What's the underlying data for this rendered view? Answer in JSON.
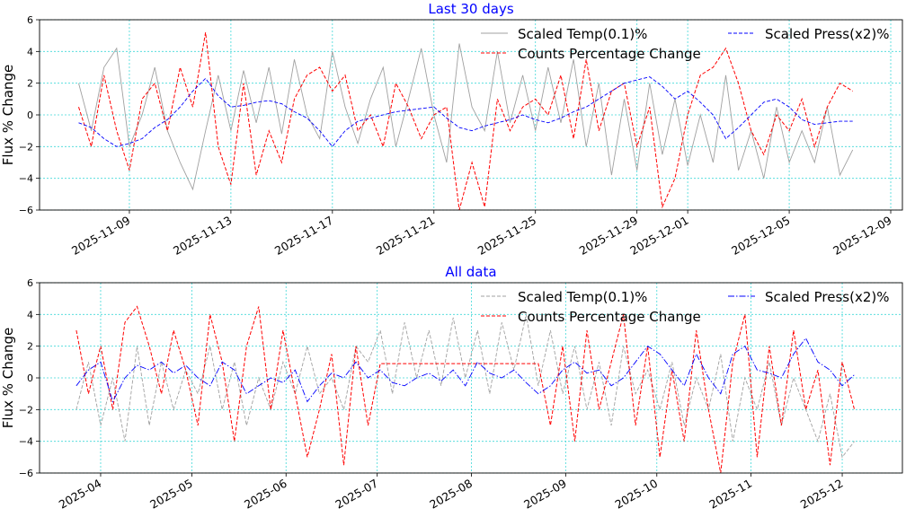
{
  "chart_data": [
    {
      "type": "line",
      "title": "Last 30 days",
      "ylabel": "Flux % Change",
      "xlabel": "",
      "x_unit": "days since 2025-11-01",
      "xlim": [
        4.46,
        38.46
      ],
      "ylim": [
        -6,
        6
      ],
      "yticks": [
        -6,
        -4,
        -2,
        0,
        2,
        4,
        6
      ],
      "xticks": [
        {
          "value": 8,
          "label": "2025-11-09"
        },
        {
          "value": 12,
          "label": "2025-11-13"
        },
        {
          "value": 16,
          "label": "2025-11-17"
        },
        {
          "value": 20,
          "label": "2025-11-21"
        },
        {
          "value": 24,
          "label": "2025-11-25"
        },
        {
          "value": 28,
          "label": "2025-11-29"
        },
        {
          "value": 30,
          "label": "2025-12-01"
        },
        {
          "value": 34,
          "label": "2025-12-05"
        },
        {
          "value": 38,
          "label": "2025-12-09"
        }
      ],
      "grid": true,
      "legend_position": "top-right",
      "x_start": 6,
      "x_step": 0.5,
      "series": [
        {
          "name": "Scaled Temp(0.1)%",
          "color": "#a0a0a0",
          "style": "solid",
          "values": [
            2,
            -1,
            3,
            4.2,
            -2,
            0,
            3,
            -1,
            -3,
            -4.7,
            -1,
            2.5,
            -1,
            2.8,
            -0.5,
            3,
            -1.2,
            3.5,
            0,
            -1.5,
            4,
            0.5,
            -1.8,
            1,
            3,
            -2,
            1,
            4.2,
            0,
            -3,
            4.5,
            0.5,
            -1,
            4,
            -0.5,
            2.5,
            -1,
            3,
            -0.5,
            3.5,
            -2,
            2,
            -3.8,
            1,
            -3.5,
            2,
            -2.5,
            1,
            -3.2,
            0,
            -3,
            2.5,
            -3.5,
            -1,
            -4,
            0.5,
            -3,
            -1,
            -3,
            0.5,
            -3.8,
            -2.2
          ]
        },
        {
          "name": "Counts Percentage Change",
          "color": "#ff0000",
          "style": "dashed",
          "values": [
            0.5,
            -2,
            2.5,
            -1,
            -3.5,
            1,
            2,
            -1,
            3,
            0.5,
            5.2,
            -2,
            -4.4,
            2,
            -3.8,
            -1,
            -3,
            1,
            2.5,
            3,
            1.5,
            2.5,
            -1,
            0,
            -2,
            2,
            0.5,
            -1.5,
            0,
            0.5,
            -6,
            -3,
            -5.8,
            1,
            -1,
            0.5,
            1,
            0,
            2.5,
            -1.5,
            3.5,
            -1,
            1.5,
            2,
            -2,
            0.5,
            -5.8,
            -4,
            0,
            2.5,
            3,
            4.2,
            2,
            -1,
            -2.5,
            0,
            -1,
            1,
            -2,
            0.5,
            2,
            1.5
          ]
        },
        {
          "name": "Scaled Press(x2)%",
          "color": "#0000ff",
          "style": "dashed",
          "values": [
            -0.5,
            -0.8,
            -1.5,
            -2,
            -1.8,
            -1.5,
            -0.8,
            -0.3,
            0.5,
            1.5,
            2.3,
            1.2,
            0.5,
            0.6,
            0.8,
            0.9,
            0.7,
            0.2,
            -0.2,
            -1,
            -2,
            -1,
            -0.4,
            -0.2,
            0,
            0.2,
            0.3,
            0.4,
            0.5,
            -0.2,
            -0.8,
            -1,
            -0.7,
            -0.5,
            -0.3,
            0,
            -0.3,
            -0.5,
            -0.2,
            0.2,
            0.5,
            1,
            1.5,
            2,
            2.2,
            2.4,
            1.8,
            1,
            1.5,
            0.8,
            0,
            -1.5,
            -0.8,
            0,
            0.8,
            1,
            0.5,
            -0.3,
            -0.6,
            -0.5,
            -0.4,
            -0.4
          ]
        }
      ]
    },
    {
      "type": "line",
      "title": "All data",
      "ylabel": "Flux % Change",
      "xlabel": "",
      "x_unit": "days since 2025-04-01",
      "xlim": [
        -20.1,
        263.8
      ],
      "ylim": [
        -6,
        6
      ],
      "yticks": [
        -6,
        -4,
        -2,
        0,
        2,
        4,
        6
      ],
      "xticks": [
        {
          "value": 0,
          "label": "2025-04"
        },
        {
          "value": 30,
          "label": "2025-05"
        },
        {
          "value": 61,
          "label": "2025-06"
        },
        {
          "value": 91,
          "label": "2025-07"
        },
        {
          "value": 122,
          "label": "2025-08"
        },
        {
          "value": 153,
          "label": "2025-09"
        },
        {
          "value": 183,
          "label": "2025-10"
        },
        {
          "value": 214,
          "label": "2025-11"
        },
        {
          "value": 244,
          "label": "2025-12"
        }
      ],
      "grid": true,
      "legend_position": "top-right",
      "x_start": -8,
      "x_step": 4,
      "series": [
        {
          "name": "Scaled Temp(0.1)%",
          "color": "#a0a0a0",
          "style": "dashed",
          "values": [
            -2,
            1,
            -3,
            0,
            -4,
            2,
            -3,
            1,
            -2,
            0.5,
            -1,
            2,
            -2,
            1,
            -3,
            0,
            -2,
            1,
            -1,
            2,
            -1,
            0,
            -2,
            2,
            1,
            3,
            -1,
            3.5,
            0,
            3,
            -0.5,
            3.8,
            0,
            3,
            -1,
            3.5,
            0.5,
            4,
            -0.5,
            3,
            -1,
            2,
            -2,
            1,
            -3,
            2,
            -1,
            0.5,
            -2,
            1,
            -3,
            0,
            -2,
            1.5,
            -4,
            0,
            -2,
            1,
            -3,
            0,
            -2,
            -4,
            -1,
            -5,
            -4
          ]
        },
        {
          "name": "Counts Percentage Change",
          "color": "#ff0000",
          "style": "dashed",
          "values": [
            3,
            -1,
            2,
            -2,
            3.5,
            4.5,
            2,
            -1,
            3,
            0.5,
            -3,
            4,
            1,
            -4,
            2,
            4.5,
            -2,
            3,
            -1,
            -5,
            -2,
            1.5,
            -5.5,
            2,
            -3,
            0.9,
            0.9,
            0.9,
            0.9,
            0.9,
            0.9,
            0.9,
            0.9,
            0.9,
            0.9,
            0.9,
            0.9,
            0.9,
            0.9,
            -3,
            2,
            -4,
            3,
            -2,
            1,
            4,
            -3,
            2,
            -5,
            0.5,
            -4,
            3,
            -2,
            -6,
            1,
            4,
            -5,
            2,
            -3,
            3,
            -2,
            0.5,
            -5.5,
            1,
            -2
          ]
        },
        {
          "name": "Scaled Press(x2)%",
          "color": "#0000ff",
          "style": "dashdot",
          "values": [
            -0.5,
            0.5,
            1,
            -1.5,
            0,
            0.8,
            0.5,
            1,
            0.3,
            0.8,
            0,
            -0.5,
            1,
            0.5,
            -1,
            -0.5,
            0,
            -0.3,
            0.5,
            -1.5,
            -0.5,
            0.3,
            0,
            1,
            0,
            0.5,
            -0.3,
            -0.5,
            0,
            0.3,
            -0.2,
            0.5,
            -0.5,
            1,
            0.3,
            0,
            0.5,
            -0.3,
            -1,
            -0.5,
            0.5,
            1,
            0.3,
            0.5,
            -0.5,
            0,
            1,
            2,
            1.5,
            0.5,
            -0.5,
            1.5,
            0,
            -1,
            1.5,
            2,
            0.5,
            0.3,
            0,
            1.5,
            2.5,
            1,
            0.5,
            -0.5,
            0.2
          ]
        }
      ]
    }
  ]
}
